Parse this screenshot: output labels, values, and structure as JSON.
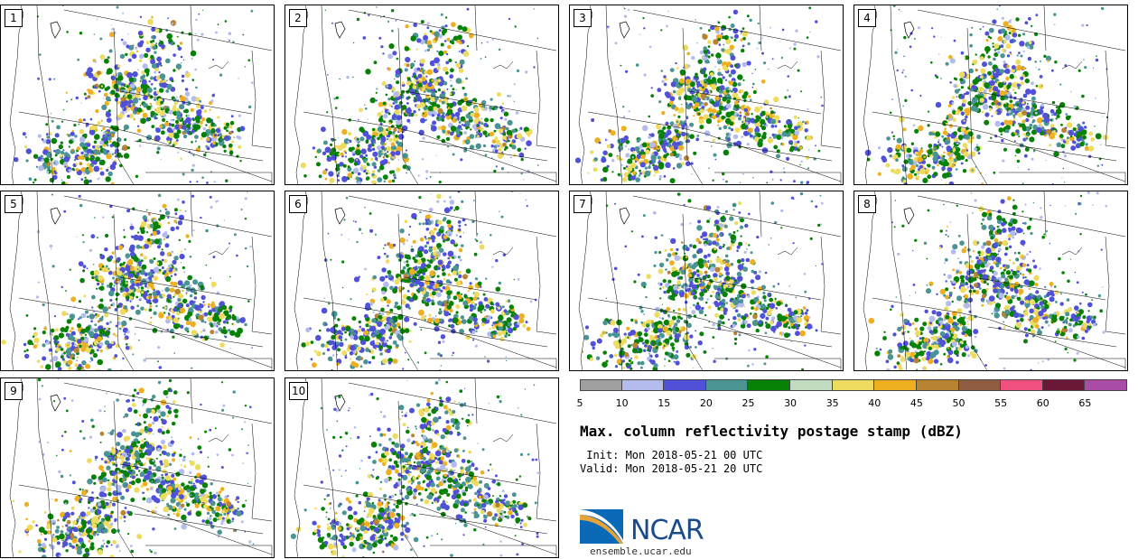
{
  "panels": [
    {
      "label": "1",
      "seed": 11
    },
    {
      "label": "2",
      "seed": 23
    },
    {
      "label": "3",
      "seed": 37
    },
    {
      "label": "4",
      "seed": 41
    },
    {
      "label": "5",
      "seed": 53
    },
    {
      "label": "6",
      "seed": 67
    },
    {
      "label": "7",
      "seed": 71
    },
    {
      "label": "8",
      "seed": 89
    },
    {
      "label": "9",
      "seed": 97
    },
    {
      "label": "10",
      "seed": 103
    }
  ],
  "colorbar": {
    "colors": [
      "#a0a0a0",
      "#b4bcee",
      "#5050d8",
      "#4a9494",
      "#078207",
      "#c2dcc2",
      "#eedc60",
      "#eeb020",
      "#b88432",
      "#905c42",
      "#f05080",
      "#6a1838",
      "#a84ca8"
    ],
    "ticks": [
      "5",
      "10",
      "15",
      "20",
      "25",
      "30",
      "35",
      "40",
      "45",
      "50",
      "55",
      "60",
      "65"
    ]
  },
  "title": "Max. column reflectivity postage stamp (dBZ)",
  "init": " Init: Mon 2018-05-21 00 UTC",
  "valid": "Valid: Mon 2018-05-21 20 UTC",
  "logo": {
    "text": "NCAR",
    "url_text": "ensemble.ucar.edu"
  }
}
